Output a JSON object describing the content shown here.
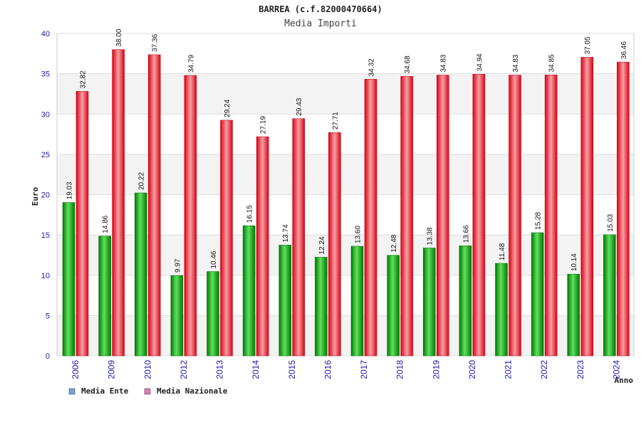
{
  "chart_data": {
    "type": "bar",
    "title": "BARREA (c.f.82000470664)",
    "subtitle": "Media Importi",
    "ylabel": "Euro",
    "xlabel": "Anno",
    "ylim": [
      0,
      40
    ],
    "yticks": [
      0,
      5,
      10,
      15,
      20,
      25,
      30,
      35,
      40
    ],
    "grid": true,
    "legend_position": "bottom-left",
    "categories": [
      "2006",
      "2009",
      "2010",
      "2012",
      "2013",
      "2014",
      "2015",
      "2016",
      "2017",
      "2018",
      "2019",
      "2020",
      "2021",
      "2022",
      "2023",
      "2024"
    ],
    "series": [
      {
        "name": "Media Ente",
        "legend_color": "#6fa8dc",
        "bar_color": "#22aa22",
        "values": [
          19.03,
          14.86,
          20.22,
          9.97,
          10.46,
          16.15,
          13.74,
          12.24,
          13.6,
          12.48,
          13.38,
          13.66,
          11.48,
          15.28,
          10.14,
          15.03
        ],
        "labels": [
          "19.03",
          "14.86",
          "20.22",
          "9.97",
          "10.46",
          "16.15",
          "13.74",
          "12.24",
          "13.60",
          "12.48",
          "13.38",
          "13.66",
          "11.48",
          "15.28",
          "10.14",
          "15.03"
        ]
      },
      {
        "name": "Media Nazionale",
        "legend_color": "#e07ab0",
        "bar_color": "#ee2222",
        "values": [
          32.82,
          38.0,
          37.36,
          34.79,
          29.24,
          27.19,
          29.43,
          27.71,
          34.32,
          34.68,
          34.83,
          34.94,
          34.83,
          34.85,
          37.05,
          36.46
        ],
        "labels": [
          "32.82",
          "38.00",
          "37.36",
          "34.79",
          "29.24",
          "27.19",
          "29.43",
          "27.71",
          "34.32",
          "34.68",
          "34.83",
          "34.94",
          "34.83",
          "34.85",
          "37.05",
          "36.46"
        ]
      }
    ]
  }
}
